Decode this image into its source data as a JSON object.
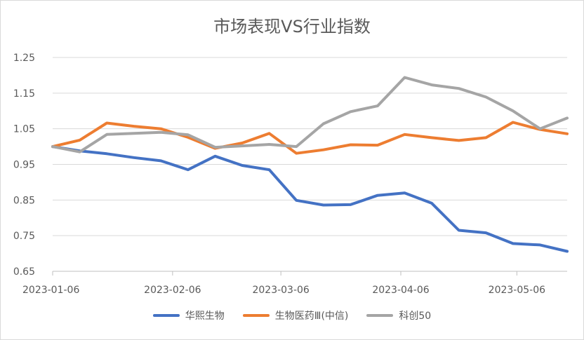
{
  "chart_data": {
    "type": "line",
    "title": "市场表现VS行业指数",
    "xlabel": "",
    "ylabel": "",
    "ylim": [
      0.65,
      1.25
    ],
    "yticks": [
      "1.25",
      "1.15",
      "1.05",
      "0.95",
      "0.85",
      "0.75",
      "0.65"
    ],
    "xticks": [
      "2023-01-06",
      "2023-02-06",
      "2023-03-06",
      "2023-04-06",
      "2023-05-06"
    ],
    "xtick_dates": [
      "2023-01-06",
      "2023-02-06",
      "2023-03-06",
      "2023-04-06",
      "2023-05-06"
    ],
    "x": [
      "2023-01-06",
      "2023-01-13",
      "2023-01-20",
      "2023-01-27",
      "2023-02-03",
      "2023-02-10",
      "2023-02-17",
      "2023-02-24",
      "2023-03-03",
      "2023-03-10",
      "2023-03-17",
      "2023-03-24",
      "2023-03-31",
      "2023-04-07",
      "2023-04-14",
      "2023-04-21",
      "2023-04-28",
      "2023-05-05",
      "2023-05-12",
      "2023-05-19"
    ],
    "grid": true,
    "legend_position": "bottom",
    "series": [
      {
        "name": "华熙生物",
        "color": "#4472C4",
        "values": [
          1.0,
          0.988,
          0.98,
          0.969,
          0.96,
          0.935,
          0.973,
          0.947,
          0.935,
          0.849,
          0.836,
          0.837,
          0.863,
          0.87,
          0.841,
          0.765,
          0.758,
          0.728,
          0.724,
          0.706
        ]
      },
      {
        "name": "生物医药Ⅲ(中信)",
        "color": "#ED7D31",
        "values": [
          1.0,
          1.018,
          1.066,
          1.057,
          1.05,
          1.026,
          0.995,
          1.01,
          1.037,
          0.981,
          0.991,
          1.005,
          1.004,
          1.034,
          1.025,
          1.017,
          1.025,
          1.068,
          1.048,
          1.036
        ]
      },
      {
        "name": "科创50",
        "color": "#A5A5A5",
        "values": [
          1.0,
          0.985,
          1.034,
          1.037,
          1.04,
          1.033,
          0.998,
          1.002,
          1.006,
          1.0,
          1.064,
          1.098,
          1.114,
          1.194,
          1.173,
          1.163,
          1.139,
          1.1,
          1.05,
          1.08
        ]
      }
    ]
  }
}
